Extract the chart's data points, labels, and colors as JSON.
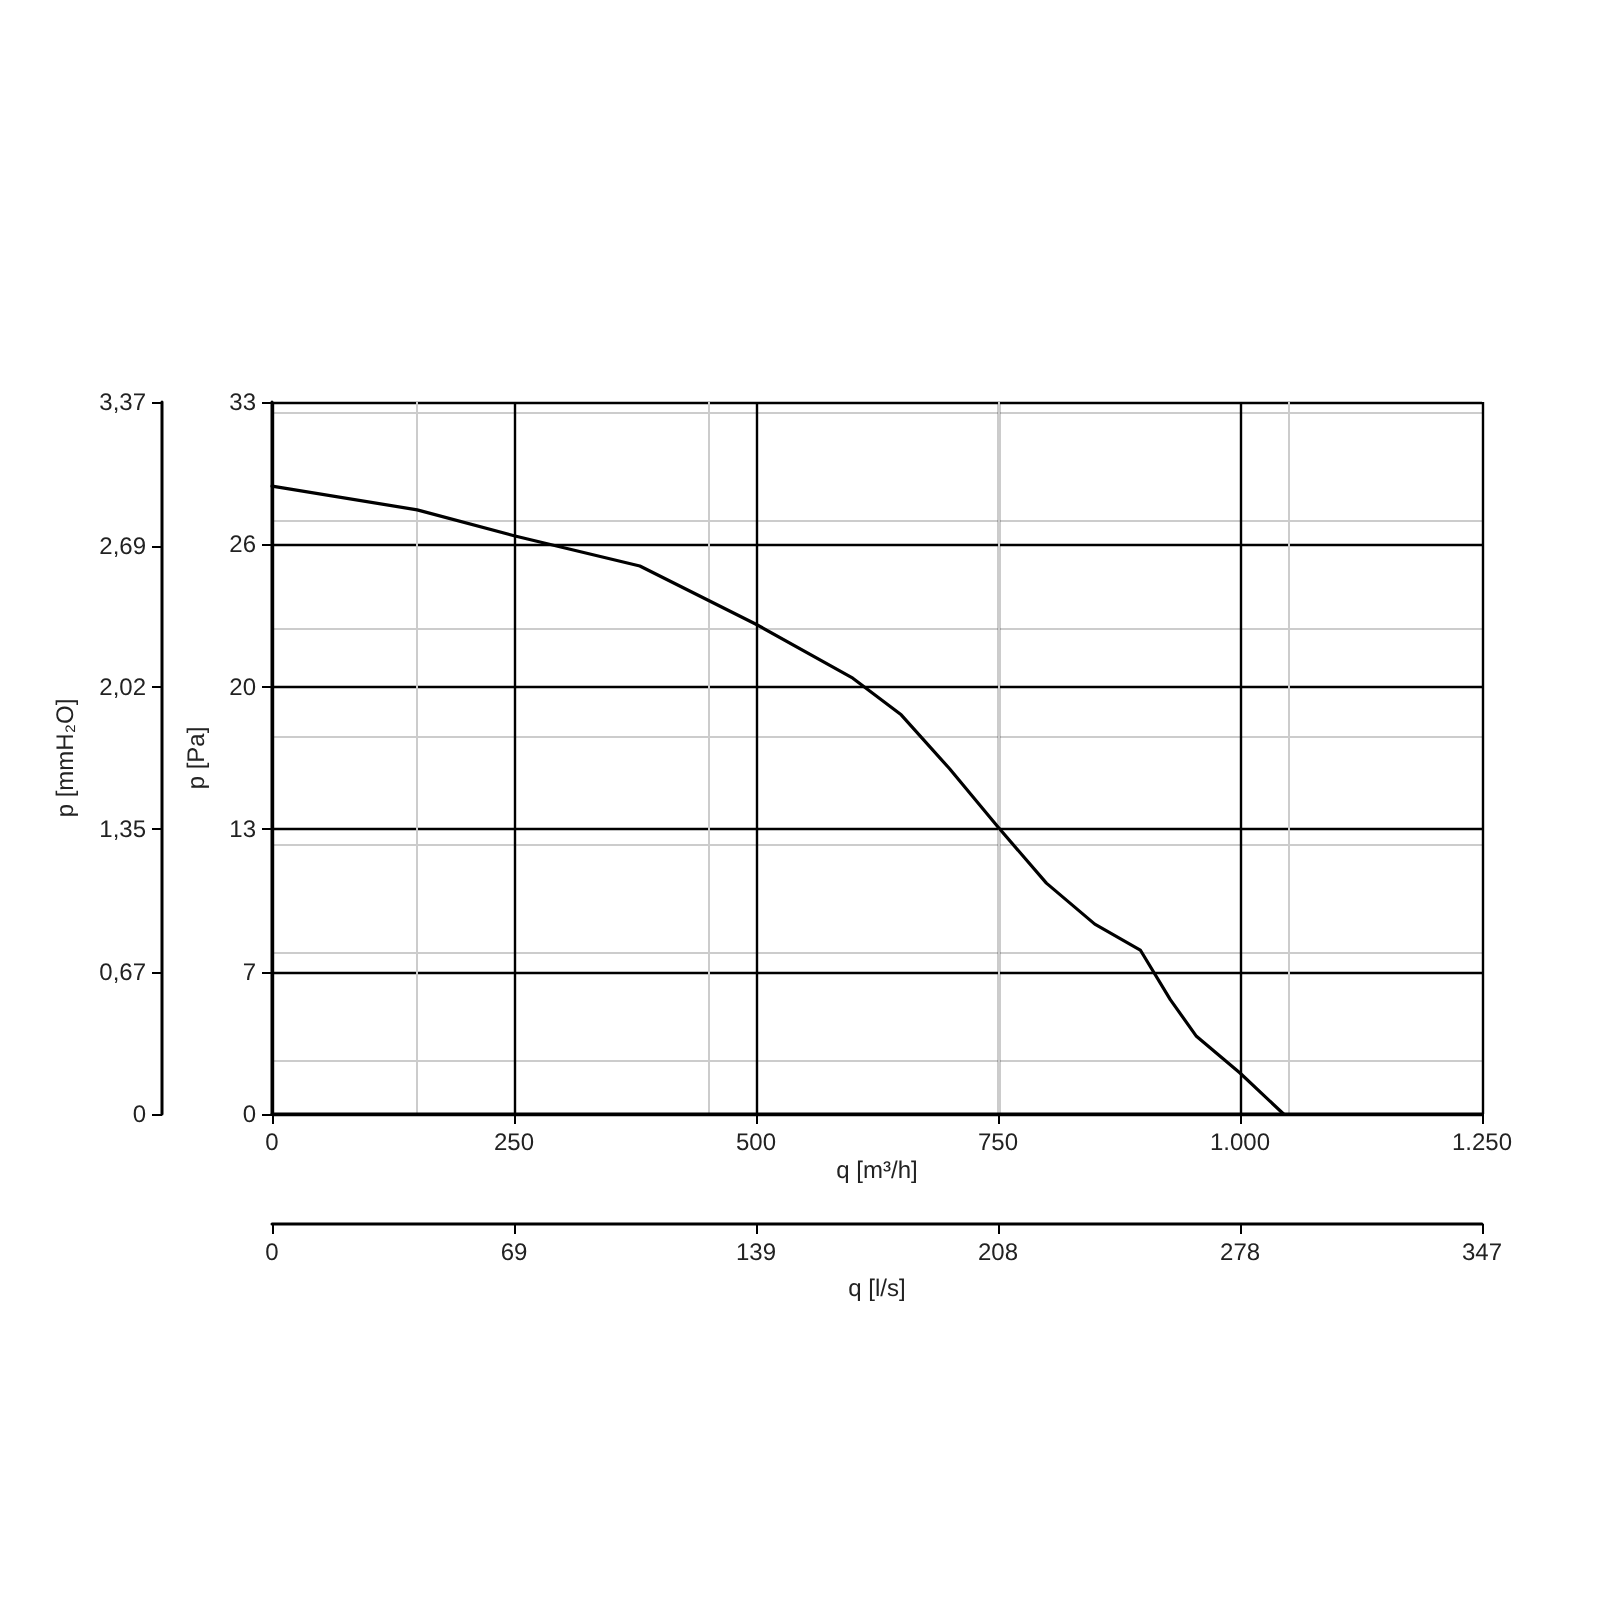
{
  "chart_data": {
    "type": "line",
    "xlabel": "q [m³/h]",
    "ylabel": "p [Pa]",
    "y2label": "p [mmH₂O]",
    "x2label": "q [l/s]",
    "x": [
      0,
      150,
      250,
      380,
      500,
      600,
      650,
      700,
      750,
      800,
      850,
      897,
      928,
      955,
      1000,
      1045
    ],
    "series": [
      {
        "color": "#000000",
        "values": [
          29.1,
          28.0,
          26.8,
          25.4,
          22.7,
          20.2,
          18.5,
          16.0,
          13.3,
          10.7,
          8.8,
          7.6,
          5.3,
          3.6,
          1.9,
          0
        ]
      }
    ],
    "xlim": [
      0,
      1250
    ],
    "xticks": [
      0,
      250,
      500,
      750,
      {
        "value": 1000,
        "label": "1.000"
      },
      {
        "value": 1250,
        "label": "1.250"
      }
    ],
    "x2lim": [
      0,
      347.2
    ],
    "x2ticks": [
      0,
      {
        "value": 69.44,
        "label": "69"
      },
      {
        "value": 138.89,
        "label": "139"
      },
      {
        "value": 208.33,
        "label": "208"
      },
      {
        "value": 277.78,
        "label": "278"
      },
      {
        "value": 347.2,
        "label": "347"
      }
    ],
    "ylim": [
      0,
      33
    ],
    "yticks": [
      0,
      {
        "value": 6.6,
        "label": "7"
      },
      {
        "value": 13.2,
        "label": "13"
      },
      {
        "value": 19.8,
        "label": "20"
      },
      {
        "value": 26.4,
        "label": "26"
      },
      33
    ],
    "y2lim": [
      0,
      3.37
    ],
    "y2ticks": [
      0,
      {
        "value": 0.67,
        "label": "0,67"
      },
      {
        "value": 1.35,
        "label": "1,35"
      },
      {
        "value": 2.02,
        "label": "2,02"
      },
      {
        "value": 2.69,
        "label": "2,69"
      },
      {
        "value": 3.37,
        "label": "3,37"
      }
    ],
    "grid": true,
    "marker": "none",
    "line_style": "solid"
  }
}
